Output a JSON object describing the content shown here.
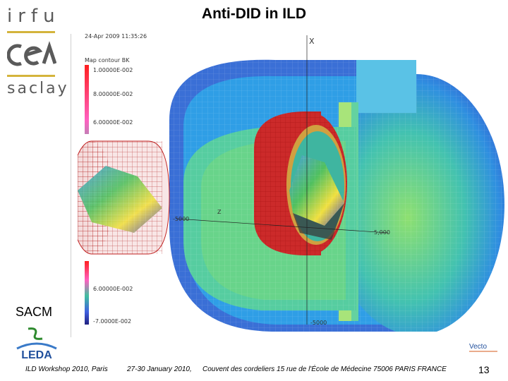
{
  "slide": {
    "title": "Anti-DID in ILD",
    "page_number": "13"
  },
  "logos": {
    "irfu": "irfu",
    "cea": "cea",
    "saclay": "saclay",
    "sacm": "SACM",
    "leda": "LEDA",
    "vecto": "Vecto"
  },
  "footer": {
    "workshop": "ILD Workshop 2010, Paris",
    "dates": "27-30 January 2010,",
    "venue": "Couvent des cordeliers   15 rue de l'École de Médecine 75006 PARIS FRANCE"
  },
  "simulation": {
    "legend_title": "Map contour BK",
    "legend_values": [
      "1.00000E-002",
      "8.00000E-002",
      "6.00000E-002"
    ],
    "lower_legend_values": [
      "6.00000E-002",
      "-7.0000E-002"
    ],
    "axis_labels": {
      "x_axis": "X",
      "z_axis": "Z",
      "tick_neg": "-5000",
      "tick_pos": "5,000",
      "tick_bottom": "-5000"
    }
  },
  "colors": {
    "title": "#000000",
    "gold": "#d4b43c",
    "logo_gray": "#5a5a5a",
    "magnet_red": "#cc2a2a",
    "yoke_blue": "#3a78d6",
    "field_green": "#5ed090"
  }
}
